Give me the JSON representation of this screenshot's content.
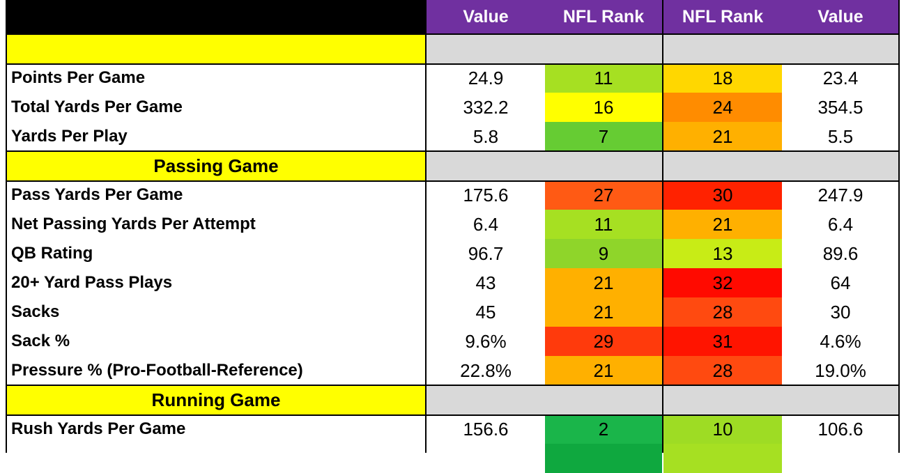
{
  "header": {
    "col1": "Value",
    "col2": "NFL Rank",
    "col3": "NFL Rank",
    "col4": "Value"
  },
  "rows": [
    {
      "kind": "section",
      "label": ""
    },
    {
      "kind": "data",
      "label": "Points Per Game",
      "value1": "24.9",
      "rank1": "11",
      "rank2": "18",
      "value2": "23.4",
      "color1": "#a6e022",
      "color2": "#ffd700"
    },
    {
      "kind": "data",
      "label": "Total Yards Per Game",
      "value1": "332.2",
      "rank1": "16",
      "rank2": "24",
      "value2": "354.5",
      "color1": "#ffff00",
      "color2": "#ff8c00"
    },
    {
      "kind": "data",
      "label": "Yards Per Play",
      "value1": "5.8",
      "rank1": "7",
      "rank2": "21",
      "value2": "5.5",
      "color1": "#66cc33",
      "color2": "#ffb000"
    },
    {
      "kind": "section",
      "label": "Passing Game"
    },
    {
      "kind": "data",
      "label": "Pass Yards Per Game",
      "value1": "175.6",
      "rank1": "27",
      "rank2": "30",
      "value2": "247.9",
      "color1": "#ff5a14",
      "color2": "#ff2200"
    },
    {
      "kind": "data",
      "label": "Net Passing Yards Per Attempt",
      "value1": "6.4",
      "rank1": "11",
      "rank2": "21",
      "value2": "6.4",
      "color1": "#a6e022",
      "color2": "#ffb000"
    },
    {
      "kind": "data",
      "label": "QB Rating",
      "value1": "96.7",
      "rank1": "9",
      "rank2": "13",
      "value2": "89.6",
      "color1": "#8fd52a",
      "color2": "#c8ec16"
    },
    {
      "kind": "data",
      "label": "20+ Yard Pass Plays",
      "value1": "43",
      "rank1": "21",
      "rank2": "32",
      "value2": "64",
      "color1": "#ffb000",
      "color2": "#ff0a00"
    },
    {
      "kind": "data",
      "label": "Sacks",
      "value1": "45",
      "rank1": "21",
      "rank2": "28",
      "value2": "30",
      "color1": "#ffb000",
      "color2": "#ff4a10"
    },
    {
      "kind": "data",
      "label": "Sack %",
      "value1": "9.6%",
      "rank1": "29",
      "rank2": "31",
      "value2": "4.6%",
      "color1": "#ff3a0c",
      "color2": "#ff1400"
    },
    {
      "kind": "data",
      "label": "Pressure % (Pro-Football-Reference)",
      "value1": "22.8%",
      "rank1": "21",
      "rank2": "28",
      "value2": "19.0%",
      "color1": "#ffb000",
      "color2": "#ff4a10"
    },
    {
      "kind": "section",
      "label": "Running Game"
    },
    {
      "kind": "data",
      "label": "Rush Yards Per Game",
      "value1": "156.6",
      "rank1": "2",
      "rank2": "10",
      "value2": "106.6",
      "color1": "#1ab54a",
      "color2": "#9edc24"
    },
    {
      "kind": "data",
      "label": "",
      "value1": "",
      "rank1": "",
      "rank2": "",
      "value2": "",
      "color1": "#0fa83f",
      "color2": "#a6e022"
    }
  ]
}
